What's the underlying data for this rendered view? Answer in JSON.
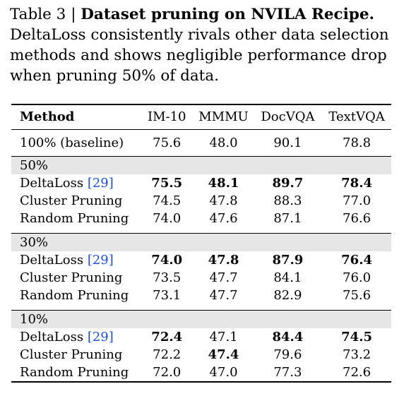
{
  "caption": {
    "prefix": "Table 3 | ",
    "title": "Dataset pruning on NVILA Recipe",
    "title_end": ".",
    "text": " DeltaLoss consistently rivals other data selection methods and shows negligible performance drop when pruning 50% of data."
  },
  "table": {
    "headers": [
      "Method",
      "IM-10",
      "MMMU",
      "DocVQA",
      "TextVQA"
    ],
    "baseline": {
      "method": "100% (baseline)",
      "values": [
        "75.6",
        "48.0",
        "90.1",
        "78.8"
      ]
    },
    "groups": [
      {
        "label": "50%",
        "rows": [
          {
            "method": "DeltaLoss",
            "cite": "[29]",
            "values": [
              "75.5",
              "48.1",
              "89.7",
              "78.4"
            ],
            "bold": [
              true,
              true,
              true,
              true
            ]
          },
          {
            "method": "Cluster Pruning",
            "cite": "",
            "values": [
              "74.5",
              "47.8",
              "88.3",
              "77.0"
            ],
            "bold": [
              false,
              false,
              false,
              false
            ]
          },
          {
            "method": "Random Pruning",
            "cite": "",
            "values": [
              "74.0",
              "47.6",
              "87.1",
              "76.6"
            ],
            "bold": [
              false,
              false,
              false,
              false
            ]
          }
        ]
      },
      {
        "label": "30%",
        "rows": [
          {
            "method": "DeltaLoss",
            "cite": "[29]",
            "values": [
              "74.0",
              "47.8",
              "87.9",
              "76.4"
            ],
            "bold": [
              true,
              true,
              true,
              true
            ]
          },
          {
            "method": "Cluster Pruning",
            "cite": "",
            "values": [
              "73.5",
              "47.7",
              "84.1",
              "76.0"
            ],
            "bold": [
              false,
              false,
              false,
              false
            ]
          },
          {
            "method": "Random Pruning",
            "cite": "",
            "values": [
              "73.1",
              "47.7",
              "82.9",
              "75.6"
            ],
            "bold": [
              false,
              false,
              false,
              false
            ]
          }
        ]
      },
      {
        "label": "10%",
        "rows": [
          {
            "method": "DeltaLoss",
            "cite": "[29]",
            "values": [
              "72.4",
              "47.1",
              "84.4",
              "74.5"
            ],
            "bold": [
              true,
              false,
              true,
              true
            ]
          },
          {
            "method": "Cluster Pruning",
            "cite": "",
            "values": [
              "72.2",
              "47.4",
              "79.6",
              "73.2"
            ],
            "bold": [
              false,
              true,
              false,
              false
            ]
          },
          {
            "method": "Random Pruning",
            "cite": "",
            "values": [
              "72.0",
              "47.0",
              "77.3",
              "72.6"
            ],
            "bold": [
              false,
              false,
              false,
              false
            ]
          }
        ]
      }
    ],
    "colors": {
      "group_band": "#e6e6e6",
      "citation": "#1a4fd6"
    }
  }
}
